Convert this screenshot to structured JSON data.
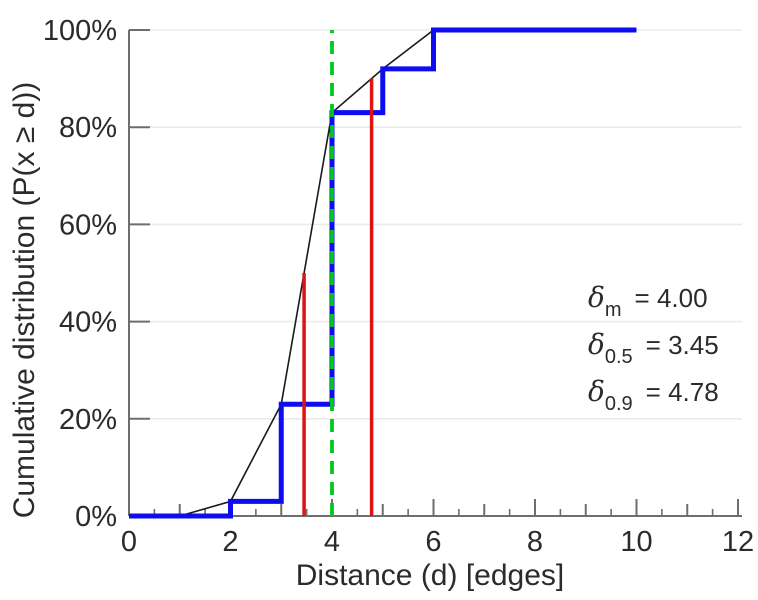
{
  "figure": {
    "background": "#ffffff"
  },
  "colors": {
    "axis": "#6e6e6e",
    "grid": "#ebebeb",
    "text": "#2b2b2b",
    "step_blue": "#0d0df0",
    "interp_black": "#1a1a1a",
    "marker_red": "#dc1414",
    "marker_green": "#00c81e"
  },
  "chart_data": {
    "type": "line",
    "title": "",
    "xlabel": "Distance (d) [edges]",
    "ylabel": "Cumulative distribution (P(x ≥ d))",
    "xlim": [
      0,
      12
    ],
    "ylim_percent": [
      0,
      100
    ],
    "grid": "horizontal-light",
    "x_minor_tick_step": 0.5,
    "x_label_tick_values": [
      0,
      2,
      4,
      6,
      8,
      10,
      12
    ],
    "x_tick_labels": [
      "0",
      "2",
      "4",
      "6",
      "8",
      "10",
      "12"
    ],
    "y_tick_values": [
      0,
      20,
      40,
      60,
      80,
      100
    ],
    "y_tick_labels": [
      "0%",
      "20%",
      "40%",
      "60%",
      "80%",
      "100%"
    ],
    "series": [
      {
        "name": "cdf-linear-interpolation",
        "kind": "line",
        "color": "#1a1a1a",
        "stroke_width": 1.6,
        "points": [
          [
            1,
            0
          ],
          [
            2,
            3
          ],
          [
            3,
            23
          ],
          [
            4,
            83
          ],
          [
            5,
            92
          ],
          [
            6,
            100
          ]
        ]
      },
      {
        "name": "cdf-step",
        "kind": "step",
        "color": "#0d0df0",
        "stroke_width": 5,
        "points": [
          [
            0,
            0
          ],
          [
            2,
            0
          ],
          [
            2,
            3
          ],
          [
            3,
            3
          ],
          [
            3,
            23
          ],
          [
            4,
            23
          ],
          [
            4,
            83
          ],
          [
            5,
            83
          ],
          [
            5,
            92
          ],
          [
            6,
            92
          ],
          [
            6,
            100
          ],
          [
            10,
            100
          ]
        ]
      },
      {
        "name": "delta-0.5-marker",
        "kind": "vline",
        "color": "#dc1414",
        "stroke_width": 3.5,
        "x": 3.45,
        "y_from": 0,
        "y_to": 50,
        "dash": null
      },
      {
        "name": "delta-0.9-marker",
        "kind": "vline",
        "color": "#dc1414",
        "stroke_width": 3.5,
        "x": 4.78,
        "y_from": 0,
        "y_to": 90,
        "dash": null
      },
      {
        "name": "delta-m-marker",
        "kind": "vline",
        "color": "#00c81e",
        "stroke_width": 3.8,
        "x": 4.0,
        "y_from": 0,
        "y_to": 100,
        "dash": [
          13,
          8
        ]
      }
    ],
    "annotations": [
      {
        "symbol": "δ",
        "subscript": "m",
        "text": "= 4.00"
      },
      {
        "symbol": "δ",
        "subscript": "0.5",
        "text": "= 3.45"
      },
      {
        "symbol": "δ",
        "subscript": "0.9",
        "text": "= 4.78"
      }
    ]
  }
}
